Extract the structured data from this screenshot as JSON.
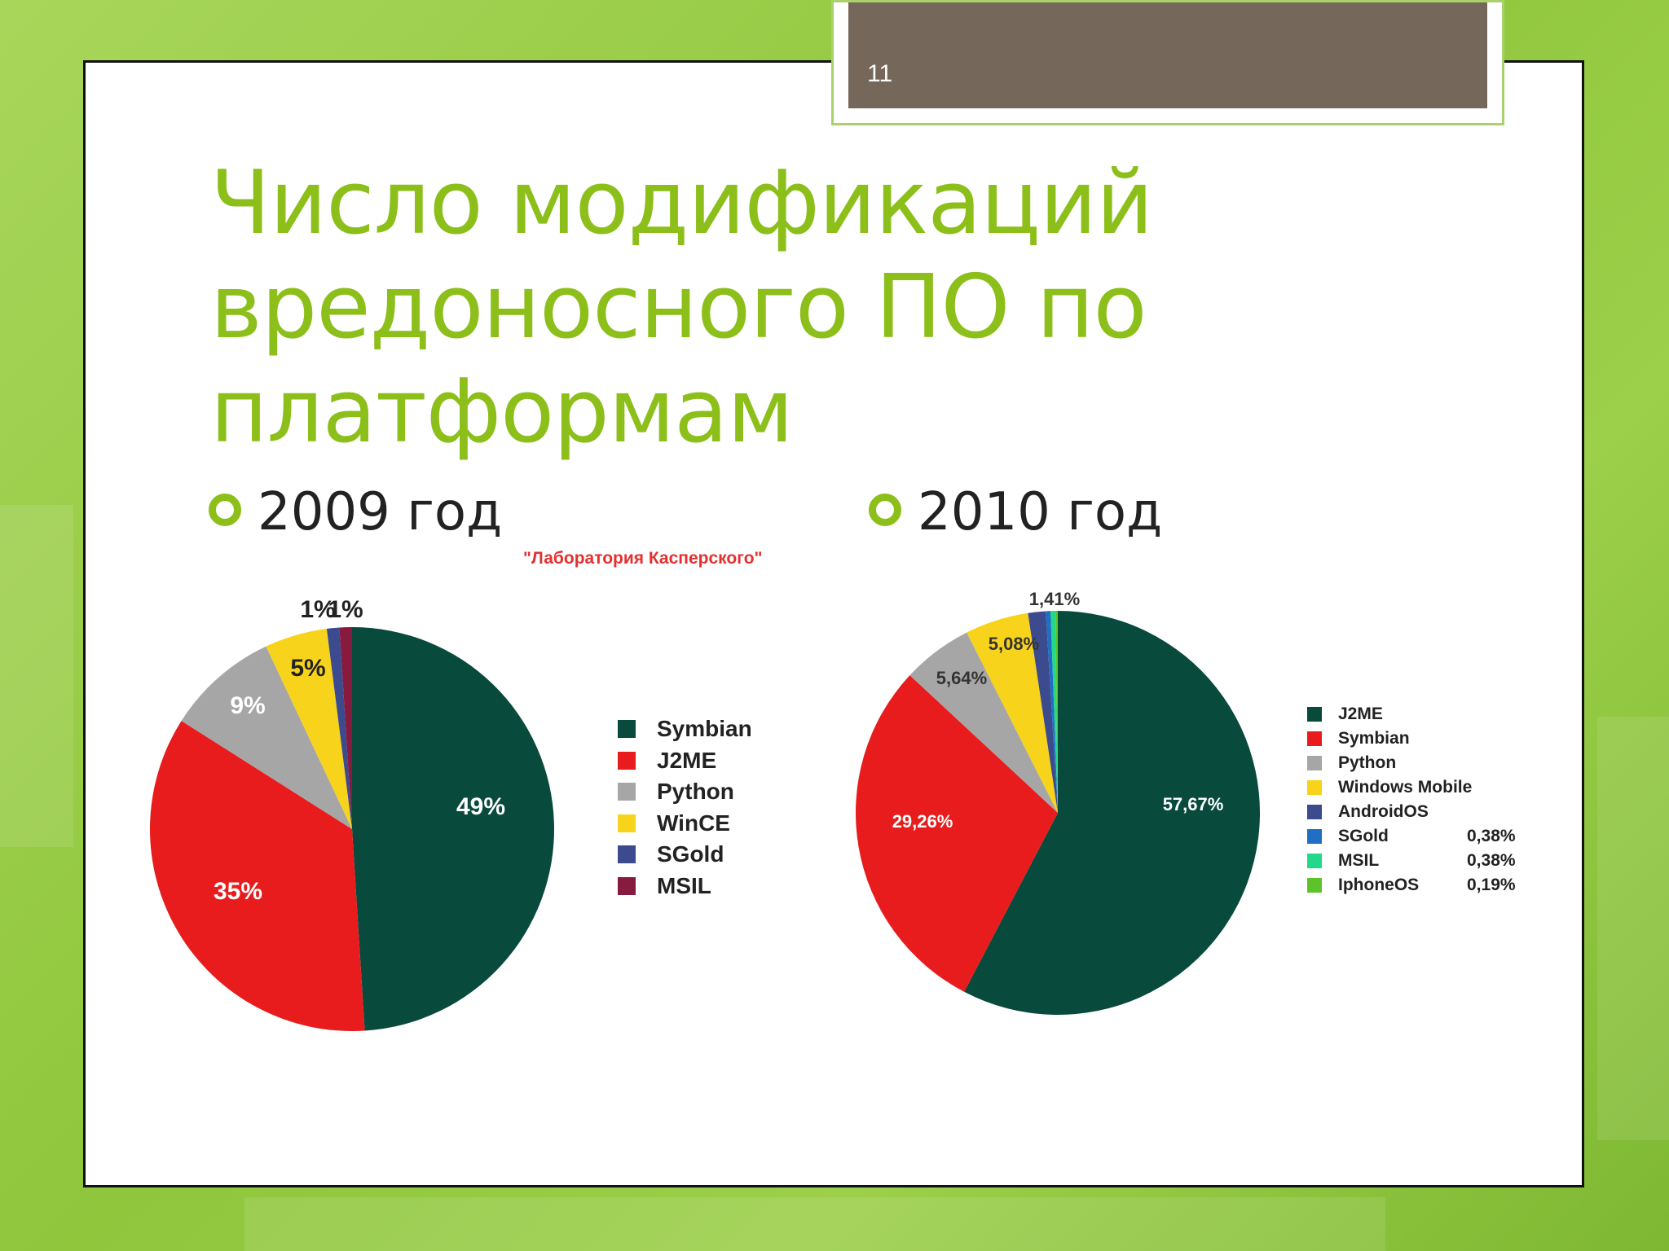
{
  "slide": {
    "number": "11",
    "title": "Число модификаций вредоносного ПО по платформам"
  },
  "bullets": [
    "2009 год",
    "2010 год"
  ],
  "source": "\"Лаборатория Касперского\"",
  "chart_data": [
    {
      "type": "pie",
      "title": "",
      "slices": [
        {
          "label": "Symbian",
          "value": 49,
          "color": "#084a3c",
          "data_label": "49%"
        },
        {
          "label": "J2ME",
          "value": 35,
          "color": "#e81c1c",
          "data_label": "35%"
        },
        {
          "label": "Python",
          "value": 9,
          "color": "#a6a6a6",
          "data_label": "9%"
        },
        {
          "label": "WinCE",
          "value": 5,
          "color": "#f7d31c",
          "data_label": "5%"
        },
        {
          "label": "SGold",
          "value": 1,
          "color": "#3c4a8e",
          "data_label": "1%"
        },
        {
          "label": "MSIL",
          "value": 1,
          "color": "#861b3f",
          "data_label": "1%"
        }
      ],
      "legend": [
        "Symbian",
        "J2ME",
        "Python",
        "WinCE",
        "SGold",
        "MSIL"
      ],
      "legend_position": "right"
    },
    {
      "type": "pie",
      "title": "",
      "slices": [
        {
          "label": "J2ME",
          "value": 57.67,
          "color": "#084a3c",
          "data_label": "57,67%"
        },
        {
          "label": "Symbian",
          "value": 29.26,
          "color": "#e81c1c",
          "data_label": "29,26%"
        },
        {
          "label": "Python",
          "value": 5.64,
          "color": "#a6a6a6",
          "data_label": "5,64%"
        },
        {
          "label": "Windows Mobile",
          "value": 5.08,
          "color": "#f7d31c",
          "data_label": "5,08%"
        },
        {
          "label": "AndroidOS",
          "value": 1.41,
          "color": "#3c4a8e",
          "data_label": "1,41%"
        },
        {
          "label": "SGold",
          "value": 0.38,
          "color": "#1f6fc5",
          "data_label": "0,38%"
        },
        {
          "label": "MSIL",
          "value": 0.38,
          "color": "#22d88a",
          "data_label": "0,38%"
        },
        {
          "label": "IphoneOS",
          "value": 0.19,
          "color": "#5cc42a",
          "data_label": "0,19%"
        }
      ],
      "legend": [
        "J2ME",
        "Symbian",
        "Python",
        "Windows Mobile",
        "AndroidOS",
        "SGold",
        "MSIL",
        "IphoneOS"
      ],
      "legend_values": [
        "",
        "",
        "",
        "",
        "",
        "0,38%",
        "0,38%",
        "0,19%"
      ],
      "legend_position": "right"
    }
  ]
}
